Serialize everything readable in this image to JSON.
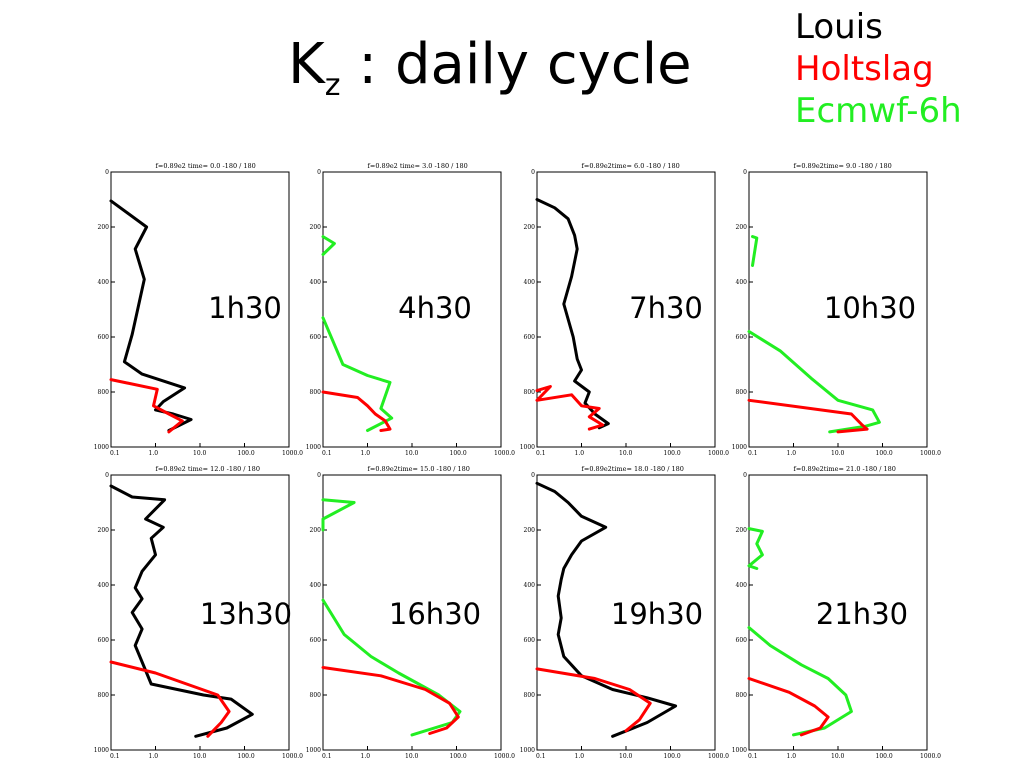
{
  "page": {
    "title_main": "K",
    "title_sub": "z",
    "title_rest": " : daily cycle"
  },
  "legend": [
    {
      "name": "Louis",
      "color": "#000000"
    },
    {
      "name": "Holtslag",
      "color": "#ff0000"
    },
    {
      "name": "Ecmwf-6h",
      "color": "#22ee22"
    }
  ],
  "chart_data": [
    {
      "type": "line",
      "time_label": "1h30",
      "title": "f=0.89e2 time= 0.0 -180 / 180",
      "x_ticks": [
        "0.1",
        "1.0",
        "10.0",
        "100.0",
        "1000.0"
      ],
      "y_ticks": [
        "0",
        "200",
        "400",
        "600",
        "800",
        "1000"
      ],
      "xlim_log10": [
        -1,
        3
      ],
      "ylim": [
        0,
        1000
      ],
      "x_scale": "log",
      "y_inverted": true,
      "series": [
        {
          "name": "Louis",
          "color": "#000000",
          "points": [
            [
              0.1,
              105
            ],
            [
              0.63,
              200
            ],
            [
              0.35,
              280
            ],
            [
              0.56,
              390
            ],
            [
              0.3,
              590
            ],
            [
              0.2,
              690
            ],
            [
              0.5,
              735
            ],
            [
              4.5,
              785
            ],
            [
              1.5,
              835
            ],
            [
              1.0,
              865
            ],
            [
              2.5,
              880
            ],
            [
              6.3,
              900
            ],
            [
              2.0,
              940
            ]
          ]
        },
        {
          "name": "Holtslag",
          "color": "#ff0000",
          "points": [
            [
              0.1,
              755
            ],
            [
              1.1,
              790
            ],
            [
              0.9,
              850
            ],
            [
              2.0,
              880
            ],
            [
              4.0,
              905
            ],
            [
              2.0,
              945
            ]
          ]
        }
      ]
    },
    {
      "type": "line",
      "time_label": "4h30",
      "title": "f=0.89e2 time= 3.0 -180 / 180",
      "x_ticks": [
        "0.1",
        "1.0",
        "10.0",
        "100.0",
        "1000.0"
      ],
      "y_ticks": [
        "0",
        "200",
        "400",
        "600",
        "800",
        "1000"
      ],
      "xlim_log10": [
        -1,
        3
      ],
      "ylim": [
        0,
        1000
      ],
      "x_scale": "log",
      "y_inverted": true,
      "series": [
        {
          "name": "Ecmwf-6h",
          "color": "#22ee22",
          "points": [
            [
              0.1,
              235
            ],
            [
              0.18,
              260
            ],
            [
              0.1,
              300
            ]
          ]
        },
        {
          "name": "Ecmwf-6h",
          "color": "#22ee22",
          "points": [
            [
              0.1,
              530
            ],
            [
              0.28,
              700
            ],
            [
              1.0,
              740
            ],
            [
              3.2,
              765
            ],
            [
              2.0,
              860
            ],
            [
              3.5,
              895
            ],
            [
              1.0,
              940
            ]
          ]
        },
        {
          "name": "Holtslag",
          "color": "#ff0000",
          "points": [
            [
              0.1,
              800
            ],
            [
              0.6,
              820
            ],
            [
              1.0,
              850
            ],
            [
              1.5,
              880
            ],
            [
              2.5,
              905
            ],
            [
              3.2,
              935
            ],
            [
              2.0,
              940
            ]
          ]
        }
      ]
    },
    {
      "type": "line",
      "time_label": "7h30",
      "title": "f=0.89e2time= 6.0 -180 / 180",
      "x_ticks": [
        "0.1",
        "1.0",
        "10.0",
        "100.0",
        "1000.0"
      ],
      "y_ticks": [
        "0",
        "200",
        "400",
        "600",
        "800",
        "1000"
      ],
      "xlim_log10": [
        -1,
        3
      ],
      "ylim": [
        0,
        1000
      ],
      "x_scale": "log",
      "y_inverted": true,
      "series": [
        {
          "name": "Louis",
          "color": "#000000",
          "points": [
            [
              0.1,
              100
            ],
            [
              0.25,
              130
            ],
            [
              0.5,
              170
            ],
            [
              0.7,
              230
            ],
            [
              0.8,
              280
            ],
            [
              0.6,
              380
            ],
            [
              0.4,
              480
            ],
            [
              0.65,
              600
            ],
            [
              0.8,
              680
            ],
            [
              1.0,
              720
            ],
            [
              0.7,
              760
            ],
            [
              1.5,
              800
            ],
            [
              1.2,
              840
            ],
            [
              2.0,
              880
            ],
            [
              4.0,
              915
            ],
            [
              2.5,
              930
            ]
          ]
        },
        {
          "name": "Holtslag",
          "color": "#ff0000",
          "points": [
            [
              0.1,
              795
            ],
            [
              0.2,
              780
            ],
            [
              0.1,
              830
            ],
            [
              0.6,
              810
            ],
            [
              1.0,
              850
            ],
            [
              2.5,
              860
            ],
            [
              1.5,
              890
            ],
            [
              3.0,
              920
            ],
            [
              1.5,
              935
            ]
          ]
        }
      ]
    },
    {
      "type": "line",
      "time_label": "10h30",
      "title": "f=0.89e2time= 9.0 -180 / 180",
      "x_ticks": [
        "0.1",
        "1.0",
        "10.0",
        "100.0",
        "1000.0"
      ],
      "y_ticks": [
        "0",
        "200",
        "400",
        "600",
        "800",
        "1000"
      ],
      "xlim_log10": [
        -1,
        3
      ],
      "ylim": [
        0,
        1000
      ],
      "x_scale": "log",
      "y_inverted": true,
      "series": [
        {
          "name": "Ecmwf-6h",
          "color": "#22ee22",
          "points": [
            [
              0.12,
              235
            ],
            [
              0.15,
              240
            ],
            [
              0.12,
              340
            ]
          ]
        },
        {
          "name": "Ecmwf-6h",
          "color": "#22ee22",
          "points": [
            [
              0.1,
              580
            ],
            [
              0.5,
              650
            ],
            [
              2.5,
              750
            ],
            [
              10,
              830
            ],
            [
              60,
              865
            ],
            [
              85,
              910
            ],
            [
              40,
              925
            ],
            [
              6.5,
              945
            ]
          ]
        },
        {
          "name": "Holtslag",
          "color": "#ff0000",
          "points": [
            [
              0.1,
              830
            ],
            [
              20,
              880
            ],
            [
              35,
              920
            ],
            [
              45,
              935
            ],
            [
              10,
              945
            ]
          ]
        }
      ]
    },
    {
      "type": "line",
      "time_label": "13h30",
      "title": "f=0.89e2 time= 12.0 -180 / 180",
      "x_ticks": [
        "0.1",
        "1.0",
        "10.0",
        "100.0",
        "1000.0"
      ],
      "y_ticks": [
        "0",
        "200",
        "400",
        "600",
        "800",
        "1000"
      ],
      "xlim_log10": [
        -1,
        3
      ],
      "ylim": [
        0,
        1000
      ],
      "x_scale": "log",
      "y_inverted": true,
      "series": [
        {
          "name": "Louis",
          "color": "#000000",
          "points": [
            [
              0.1,
              40
            ],
            [
              0.3,
              80
            ],
            [
              1.6,
              90
            ],
            [
              0.6,
              160
            ],
            [
              1.5,
              190
            ],
            [
              0.8,
              230
            ],
            [
              1.0,
              290
            ],
            [
              0.5,
              350
            ],
            [
              0.35,
              410
            ],
            [
              0.5,
              450
            ],
            [
              0.3,
              500
            ],
            [
              0.5,
              560
            ],
            [
              0.35,
              620
            ],
            [
              0.5,
              680
            ],
            [
              0.8,
              760
            ],
            [
              12,
              800
            ],
            [
              50,
              815
            ],
            [
              150,
              870
            ],
            [
              40,
              920
            ],
            [
              8,
              950
            ]
          ]
        },
        {
          "name": "Holtslag",
          "color": "#ff0000",
          "points": [
            [
              0.1,
              680
            ],
            [
              1.0,
              720
            ],
            [
              5.0,
              760
            ],
            [
              25,
              800
            ],
            [
              45,
              860
            ],
            [
              30,
              900
            ],
            [
              15,
              950
            ]
          ]
        }
      ]
    },
    {
      "type": "line",
      "time_label": "16h30",
      "title": "f=0.89e2time= 15.0 -180 / 180",
      "x_ticks": [
        "0.1",
        "1.0",
        "10.0",
        "100.0",
        "1000.0"
      ],
      "y_ticks": [
        "0",
        "200",
        "400",
        "600",
        "800",
        "1000"
      ],
      "xlim_log10": [
        -1,
        3
      ],
      "ylim": [
        0,
        1000
      ],
      "x_scale": "log",
      "y_inverted": true,
      "series": [
        {
          "name": "Ecmwf-6h",
          "color": "#22ee22",
          "points": [
            [
              0.1,
              90
            ],
            [
              0.5,
              100
            ],
            [
              0.1,
              160
            ],
            [
              0.1,
              200
            ]
          ]
        },
        {
          "name": "Ecmwf-6h",
          "color": "#22ee22",
          "points": [
            [
              0.1,
              455
            ],
            [
              0.3,
              580
            ],
            [
              1.2,
              660
            ],
            [
              5.0,
              720
            ],
            [
              40,
              800
            ],
            [
              120,
              860
            ],
            [
              80,
              900
            ],
            [
              10,
              945
            ]
          ]
        },
        {
          "name": "Holtslag",
          "color": "#ff0000",
          "points": [
            [
              0.1,
              700
            ],
            [
              2.0,
              730
            ],
            [
              20,
              780
            ],
            [
              70,
              830
            ],
            [
              110,
              880
            ],
            [
              60,
              920
            ],
            [
              25,
              940
            ]
          ]
        }
      ]
    },
    {
      "type": "line",
      "time_label": "19h30",
      "title": "f=0.89e2time= 18.0 -180 / 180",
      "x_ticks": [
        "0.1",
        "1.0",
        "10.0",
        "100.0",
        "1000.0"
      ],
      "y_ticks": [
        "0",
        "200",
        "400",
        "600",
        "800",
        "1000"
      ],
      "xlim_log10": [
        -1,
        3
      ],
      "ylim": [
        0,
        1000
      ],
      "x_scale": "log",
      "y_inverted": true,
      "series": [
        {
          "name": "Louis",
          "color": "#000000",
          "points": [
            [
              0.1,
              30
            ],
            [
              0.25,
              60
            ],
            [
              0.5,
              100
            ],
            [
              1.0,
              150
            ],
            [
              3.5,
              190
            ],
            [
              1.0,
              240
            ],
            [
              0.6,
              290
            ],
            [
              0.4,
              340
            ],
            [
              0.35,
              380
            ],
            [
              0.3,
              440
            ],
            [
              0.35,
              520
            ],
            [
              0.3,
              580
            ],
            [
              0.4,
              660
            ],
            [
              1.0,
              730
            ],
            [
              5.0,
              780
            ],
            [
              30,
              810
            ],
            [
              130,
              840
            ],
            [
              30,
              900
            ],
            [
              5.0,
              950
            ]
          ]
        },
        {
          "name": "Holtslag",
          "color": "#ff0000",
          "points": [
            [
              0.1,
              705
            ],
            [
              2.0,
              740
            ],
            [
              12,
              780
            ],
            [
              35,
              830
            ],
            [
              20,
              890
            ],
            [
              10,
              930
            ]
          ]
        }
      ]
    },
    {
      "type": "line",
      "time_label": "21h30",
      "title": "f=0.89e2time= 21.0 -180 / 180",
      "x_ticks": [
        "0.1",
        "1.0",
        "10.0",
        "100.0",
        "1000.0"
      ],
      "y_ticks": [
        "0",
        "200",
        "400",
        "600",
        "800",
        "1000"
      ],
      "xlim_log10": [
        -1,
        3
      ],
      "ylim": [
        0,
        1000
      ],
      "x_scale": "log",
      "y_inverted": true,
      "series": [
        {
          "name": "Ecmwf-6h",
          "color": "#22ee22",
          "points": [
            [
              0.1,
              195
            ],
            [
              0.2,
              205
            ],
            [
              0.15,
              250
            ],
            [
              0.2,
              290
            ],
            [
              0.1,
              330
            ],
            [
              0.15,
              340
            ]
          ]
        },
        {
          "name": "Ecmwf-6h",
          "color": "#22ee22",
          "points": [
            [
              0.1,
              555
            ],
            [
              0.3,
              620
            ],
            [
              1.5,
              690
            ],
            [
              6.0,
              740
            ],
            [
              15,
              800
            ],
            [
              20,
              860
            ],
            [
              5.0,
              920
            ],
            [
              1.0,
              945
            ]
          ]
        },
        {
          "name": "Holtslag",
          "color": "#ff0000",
          "points": [
            [
              0.1,
              740
            ],
            [
              0.8,
              790
            ],
            [
              3.0,
              840
            ],
            [
              6.0,
              880
            ],
            [
              4.0,
              920
            ],
            [
              1.5,
              945
            ]
          ]
        }
      ]
    }
  ]
}
